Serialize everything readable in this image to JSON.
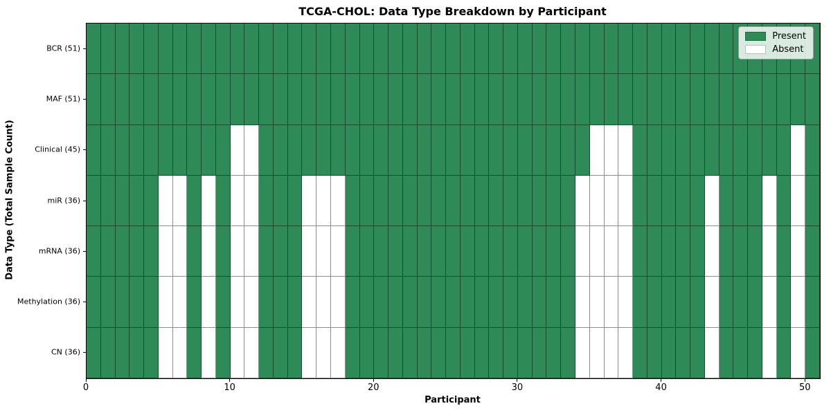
{
  "chart_data": {
    "type": "heatmap",
    "title": "TCGA-CHOL: Data Type Breakdown by Participant",
    "xlabel": "Participant",
    "ylabel": "Data Type (Total Sample Count)",
    "n_participants": 51,
    "x_ticks": [
      0,
      10,
      20,
      30,
      40,
      50
    ],
    "x_range": [
      0,
      51
    ],
    "grid_on": true,
    "rows": [
      {
        "label": "BCR (51)",
        "present_count": 51,
        "absent_participants": []
      },
      {
        "label": "MAF (51)",
        "present_count": 51,
        "absent_participants": []
      },
      {
        "label": "Clinical (45)",
        "present_count": 45,
        "absent_participants": [
          10,
          11,
          35,
          36,
          37,
          49
        ]
      },
      {
        "label": "miR (36)",
        "present_count": 36,
        "absent_participants": [
          5,
          6,
          8,
          10,
          11,
          15,
          16,
          17,
          34,
          35,
          36,
          37,
          43,
          47,
          49
        ]
      },
      {
        "label": "mRNA (36)",
        "present_count": 36,
        "absent_participants": [
          5,
          6,
          8,
          10,
          11,
          15,
          16,
          17,
          34,
          35,
          36,
          37,
          43,
          47,
          49
        ]
      },
      {
        "label": "Methylation (36)",
        "present_count": 36,
        "absent_participants": [
          5,
          6,
          8,
          10,
          11,
          15,
          16,
          17,
          34,
          35,
          36,
          37,
          43,
          47,
          49
        ]
      },
      {
        "label": "CN (36)",
        "present_count": 36,
        "absent_participants": [
          5,
          6,
          8,
          10,
          11,
          15,
          16,
          17,
          34,
          35,
          36,
          37,
          43,
          47,
          49
        ]
      }
    ],
    "legend": [
      {
        "label": "Present",
        "color": "#2e8b57"
      },
      {
        "label": "Absent",
        "color": "#ffffff"
      }
    ],
    "legend_position": "upper right",
    "colors": {
      "present": "#2e8b57",
      "absent": "#ffffff",
      "grid_line": "rgba(0,0,0,0.45)",
      "axis_line": "#000000"
    }
  }
}
